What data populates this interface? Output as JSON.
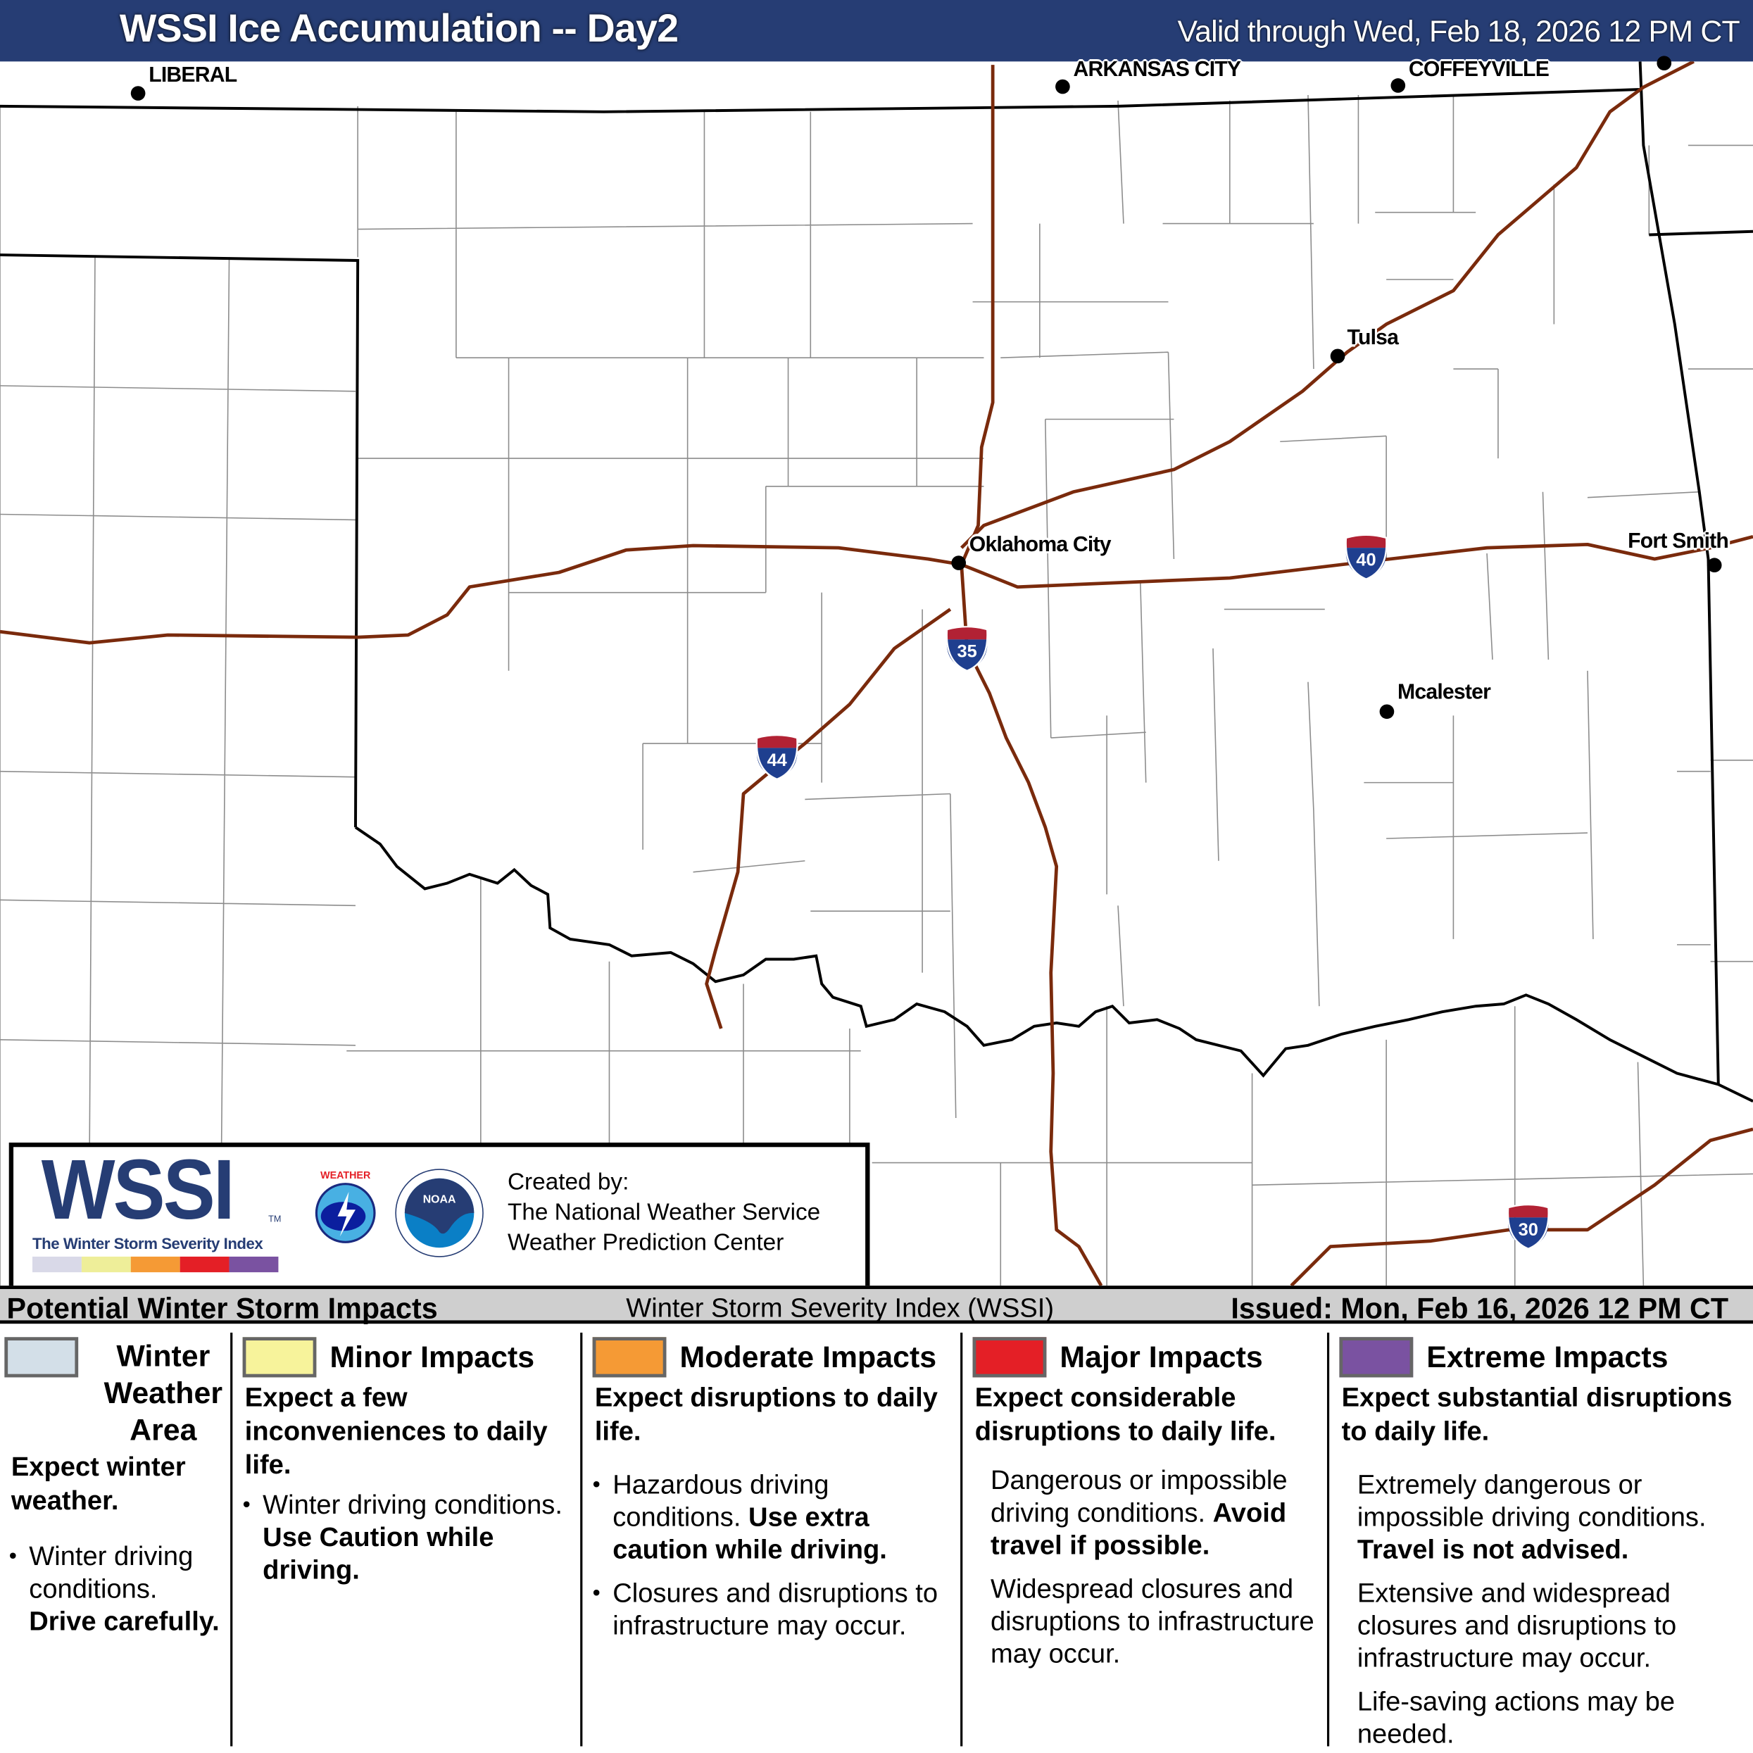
{
  "header": {
    "title": "WSSI Ice Accumulation -- Day2",
    "valid": "Valid through Wed, Feb 18, 2026 12 PM CT",
    "background": "#263d74"
  },
  "map": {
    "cities": [
      {
        "name": "LIBERAL"
      },
      {
        "name": "ARKANSAS CITY"
      },
      {
        "name": "COFFEYVILLE"
      },
      {
        "name": "Tulsa"
      },
      {
        "name": "Oklahoma City"
      },
      {
        "name": "Fort Smith"
      },
      {
        "name": "Mcalester"
      }
    ],
    "interstates": [
      "40",
      "35",
      "44",
      "30"
    ],
    "colors": {
      "highway": "#7a2a0c",
      "border": "#000000",
      "county": "#9a9a9a"
    }
  },
  "logos": {
    "wssi": "WSSI",
    "tm": "TM",
    "wssi_subtitle": "The Winter Storm Severity Index",
    "nws": "NATIONAL WEATHER SERVICE",
    "noaa": "NOAA",
    "created_by": [
      "Created by:",
      "The National Weather Service",
      "Weather Prediction Center"
    ]
  },
  "legend": {
    "left": "Potential Winter Storm Impacts",
    "center": "Winter Storm Severity Index (WSSI)",
    "issued": "Issued: Mon, Feb 16, 2026 12 PM CT",
    "columns": [
      {
        "title": "Winter Weather Area",
        "color": "#d3dfe8",
        "subtitle": "Expect winter weather.",
        "items": [
          {
            "bullet": true,
            "text": "Winter driving conditions.",
            "bold": "Drive carefully."
          }
        ]
      },
      {
        "title": "Minor Impacts",
        "color": "#f7f39b",
        "subtitle": "Expect a few inconveniences to daily life.",
        "items": [
          {
            "bullet": true,
            "text": "Winter driving conditions.",
            "bold": "Use Caution while driving."
          }
        ]
      },
      {
        "title": "Moderate Impacts",
        "color": "#f59a35",
        "subtitle": "Expect disruptions to daily life.",
        "items": [
          {
            "bullet": true,
            "text": "Hazardous driving conditions.",
            "bold": "Use extra caution while driving."
          },
          {
            "bullet": true,
            "text": "Closures and disruptions to infrastructure may occur.",
            "bold": ""
          }
        ]
      },
      {
        "title": "Major Impacts",
        "color": "#e41f26",
        "subtitle": "Expect considerable disruptions to daily life.",
        "items": [
          {
            "bullet": false,
            "text": "Dangerous or impossible driving conditions.",
            "bold": "Avoid travel if possible."
          },
          {
            "bullet": false,
            "text": "Widespread closures and disruptions to infrastructure may occur.",
            "bold": ""
          }
        ]
      },
      {
        "title": "Extreme Impacts",
        "color": "#7a52a1",
        "subtitle": "Expect substantial disruptions to daily life.",
        "items": [
          {
            "bullet": false,
            "text": "Extremely dangerous or impossible driving conditions.",
            "bold": "Travel is not advised."
          },
          {
            "bullet": false,
            "text": "Extensive and widespread closures and disruptions to infrastructure may occur.",
            "bold": ""
          },
          {
            "bullet": false,
            "text": "Life-saving actions may be needed.",
            "bold": ""
          }
        ]
      }
    ],
    "scale_colors": [
      "#d9d9e8",
      "#eeee99",
      "#f59a35",
      "#e41f26",
      "#7a52a1"
    ]
  }
}
